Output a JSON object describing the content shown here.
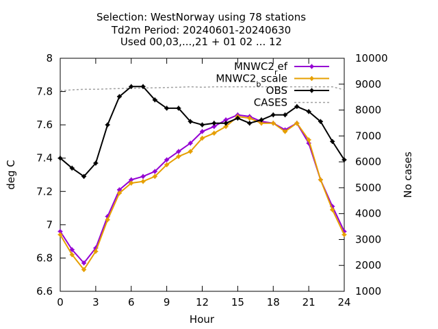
{
  "chart_data": {
    "type": "line",
    "title_lines": [
      "Selection: WestNorway using    78 stations",
      "Td2m   Period: 20240601-20240630",
      "Used 00,03,...,21 + 01 02 ... 12"
    ],
    "xlabel": "Hour",
    "ylabel": "deg C",
    "y2label": "No cases",
    "xlim": [
      0,
      24
    ],
    "ylim": [
      6.6,
      8.0
    ],
    "y2lim": [
      1000,
      10000
    ],
    "x_ticks": [
      0,
      3,
      6,
      9,
      12,
      15,
      18,
      21,
      24
    ],
    "y_ticks": [
      "6.6",
      "6.8",
      "7",
      "7.2",
      "7.4",
      "7.6",
      "7.8",
      "8"
    ],
    "y2_ticks": [
      "1000",
      "2000",
      "3000",
      "4000",
      "5000",
      "6000",
      "7000",
      "8000",
      "9000",
      "10000"
    ],
    "grid": false,
    "legend_position": "top-right",
    "x": [
      0,
      1,
      2,
      3,
      4,
      5,
      6,
      7,
      8,
      9,
      10,
      11,
      12,
      13,
      14,
      15,
      16,
      17,
      18,
      19,
      20,
      21,
      22,
      23,
      24
    ],
    "series": [
      {
        "name": "MNWC2_ref",
        "legend_main": "MNWC2",
        "legend_sub": "r",
        "legend_tail": "ef",
        "color": "#9400d3",
        "axis": "y1",
        "values": [
          6.96,
          6.85,
          6.77,
          6.86,
          7.05,
          7.21,
          7.27,
          7.29,
          7.32,
          7.39,
          7.44,
          7.49,
          7.56,
          7.59,
          7.63,
          7.66,
          7.65,
          7.62,
          7.61,
          7.57,
          7.61,
          7.49,
          7.27,
          7.11,
          6.96
        ]
      },
      {
        "name": "MNWC2_bscale",
        "legend_main": "MNWC2",
        "legend_sub": "b",
        "legend_tail": "scale",
        "color": "#e69f00",
        "axis": "y1",
        "values": [
          6.94,
          6.82,
          6.73,
          6.84,
          7.03,
          7.19,
          7.25,
          7.26,
          7.29,
          7.36,
          7.41,
          7.44,
          7.52,
          7.55,
          7.59,
          7.65,
          7.64,
          7.61,
          7.61,
          7.56,
          7.61,
          7.51,
          7.27,
          7.09,
          6.94
        ]
      },
      {
        "name": "OBS",
        "legend_main": "OBS",
        "legend_sub": "",
        "legend_tail": "",
        "color": "#000000",
        "axis": "y1",
        "values": [
          7.4,
          7.34,
          7.29,
          7.37,
          7.6,
          7.77,
          7.83,
          7.83,
          7.75,
          7.7,
          7.7,
          7.62,
          7.6,
          7.61,
          7.61,
          7.64,
          7.61,
          7.63,
          7.66,
          7.66,
          7.71,
          7.68,
          7.62,
          7.5,
          7.39
        ]
      },
      {
        "name": "CASES",
        "legend_main": "CASES",
        "legend_sub": "",
        "legend_tail": "",
        "color": "#a0a0a0",
        "axis": "y2",
        "dashed": true,
        "values": [
          8750,
          8780,
          8800,
          8800,
          8820,
          8830,
          8840,
          8850,
          8860,
          8870,
          8880,
          8900,
          8880,
          8900,
          8900,
          8900,
          8900,
          8900,
          8900,
          8900,
          8900,
          8900,
          8900,
          8900,
          8780
        ]
      }
    ]
  }
}
